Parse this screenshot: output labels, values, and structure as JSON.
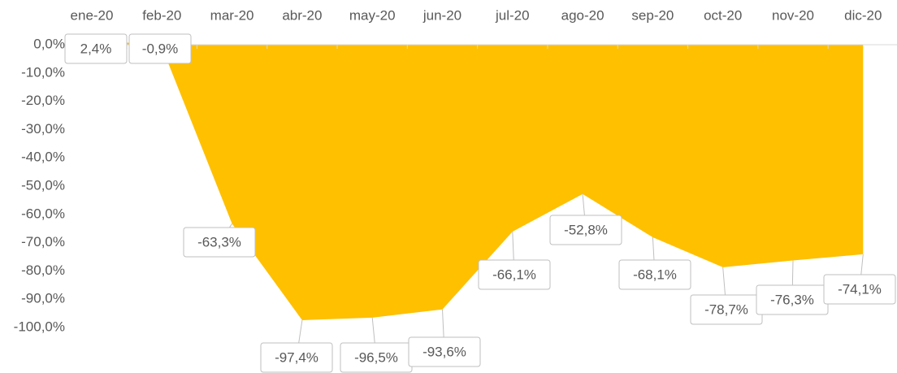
{
  "chart_data": {
    "type": "area",
    "categories": [
      "ene-20",
      "feb-20",
      "mar-20",
      "abr-20",
      "may-20",
      "jun-20",
      "jul-20",
      "ago-20",
      "sep-20",
      "oct-20",
      "nov-20",
      "dic-20"
    ],
    "values": [
      2.4,
      -0.9,
      -63.3,
      -97.4,
      -96.5,
      -93.6,
      -66.1,
      -52.8,
      -68.1,
      -78.7,
      -76.3,
      -74.1
    ],
    "value_labels": [
      "2,4%",
      "-0,9%",
      "-63,3%",
      "-97,4%",
      "-96,5%",
      "-93,6%",
      "-66,1%",
      "-52,8%",
      "-68,1%",
      "-78,7%",
      "-76,3%",
      "-74,1%"
    ],
    "color": "#ffc000",
    "ylim": [
      -100,
      0
    ],
    "yticks": [
      {
        "value": 0,
        "label": "0,0%"
      },
      {
        "value": -10,
        "label": "-10,0%"
      },
      {
        "value": -20,
        "label": "-20,0%"
      },
      {
        "value": -30,
        "label": "-30,0%"
      },
      {
        "value": -40,
        "label": "-40,0%"
      },
      {
        "value": -50,
        "label": "-50,0%"
      },
      {
        "value": -60,
        "label": "-60,0%"
      },
      {
        "value": -70,
        "label": "-70,0%"
      },
      {
        "value": -80,
        "label": "-80,0%"
      },
      {
        "value": -90,
        "label": "-90,0%"
      },
      {
        "value": -100,
        "label": "-100,0%"
      }
    ]
  }
}
